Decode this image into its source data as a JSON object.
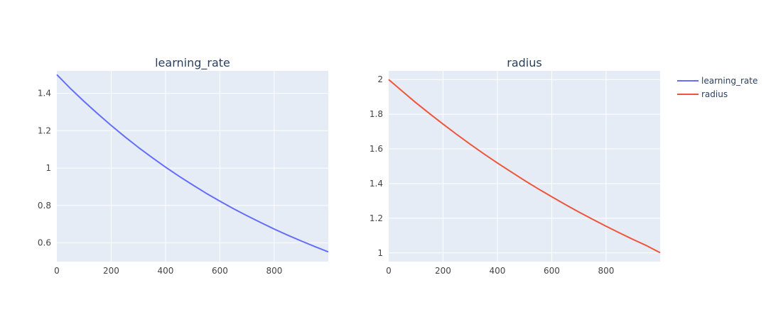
{
  "chart_data": [
    {
      "type": "line",
      "title": "learning_rate",
      "xlabel": "",
      "ylabel": "",
      "xlim": [
        0,
        999
      ],
      "ylim": [
        0.5,
        1.52
      ],
      "xticks": [
        0,
        200,
        400,
        600,
        800
      ],
      "yticks": [
        0.6,
        0.8,
        1,
        1.2,
        1.4
      ],
      "grid": true,
      "series": [
        {
          "name": "learning_rate",
          "color": "#636efa",
          "x": [
            0,
            50,
            100,
            150,
            200,
            250,
            300,
            350,
            400,
            450,
            500,
            550,
            600,
            650,
            700,
            750,
            800,
            850,
            900,
            950,
            999
          ],
          "y": [
            1.5,
            1.426,
            1.357,
            1.291,
            1.228,
            1.168,
            1.111,
            1.057,
            1.005,
            0.956,
            0.91,
            0.865,
            0.823,
            0.783,
            0.745,
            0.709,
            0.674,
            0.641,
            0.61,
            0.58,
            0.552
          ]
        }
      ]
    },
    {
      "type": "line",
      "title": "radius",
      "xlabel": "",
      "ylabel": "",
      "xlim": [
        0,
        999
      ],
      "ylim": [
        0.95,
        2.05
      ],
      "xticks": [
        0,
        200,
        400,
        600,
        800
      ],
      "yticks": [
        1,
        1.2,
        1.4,
        1.6,
        1.8,
        2
      ],
      "grid": true,
      "series": [
        {
          "name": "radius",
          "color": "#ef553b",
          "x": [
            0,
            50,
            100,
            150,
            200,
            250,
            300,
            350,
            400,
            450,
            500,
            550,
            600,
            650,
            700,
            750,
            800,
            850,
            900,
            950,
            999
          ],
          "y": [
            2.0,
            1.933,
            1.867,
            1.804,
            1.743,
            1.684,
            1.627,
            1.572,
            1.519,
            1.468,
            1.418,
            1.37,
            1.324,
            1.279,
            1.236,
            1.194,
            1.154,
            1.115,
            1.077,
            1.041,
            1.001
          ]
        }
      ]
    }
  ],
  "legend": {
    "position": "top-right",
    "items": [
      {
        "label": "learning_rate",
        "color": "#636efa"
      },
      {
        "label": "radius",
        "color": "#ef553b"
      }
    ]
  }
}
